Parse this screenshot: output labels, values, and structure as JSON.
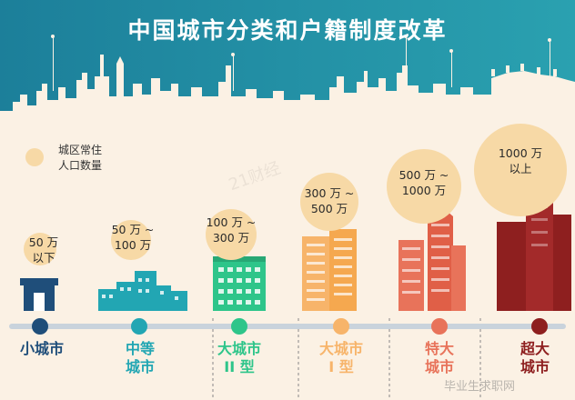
{
  "title": "中国城市分类和户籍制度改革",
  "legend": {
    "label": "城区常住\n人口数量"
  },
  "categories": [
    {
      "id": "small",
      "population": "50 万\n以下",
      "label": "小城市",
      "color": "#1f4e7a"
    },
    {
      "id": "medium",
      "population": "50 万 ~\n100 万",
      "label": "中等\n城市",
      "color": "#22a6b3"
    },
    {
      "id": "large2",
      "population": "100 万 ~\n300 万",
      "label": "大城市\nII 型",
      "color": "#2ec58a"
    },
    {
      "id": "large1",
      "population": "300 万 ~\n500 万",
      "label": "大城市\nI 型",
      "color": "#f7b46a"
    },
    {
      "id": "mega",
      "population": "500 万 ~\n1000 万",
      "label": "特大\n城市",
      "color": "#e8735a"
    },
    {
      "id": "super",
      "population": "1000 万\n以上",
      "label": "超大\n城市",
      "color": "#8e1f1f"
    }
  ],
  "watermarks": [
    "21财经",
    "毕业生求职网"
  ],
  "colors": {
    "sky": "#1f8fa4",
    "skyline": "#ffffff",
    "cream": "#fbf1e4"
  }
}
